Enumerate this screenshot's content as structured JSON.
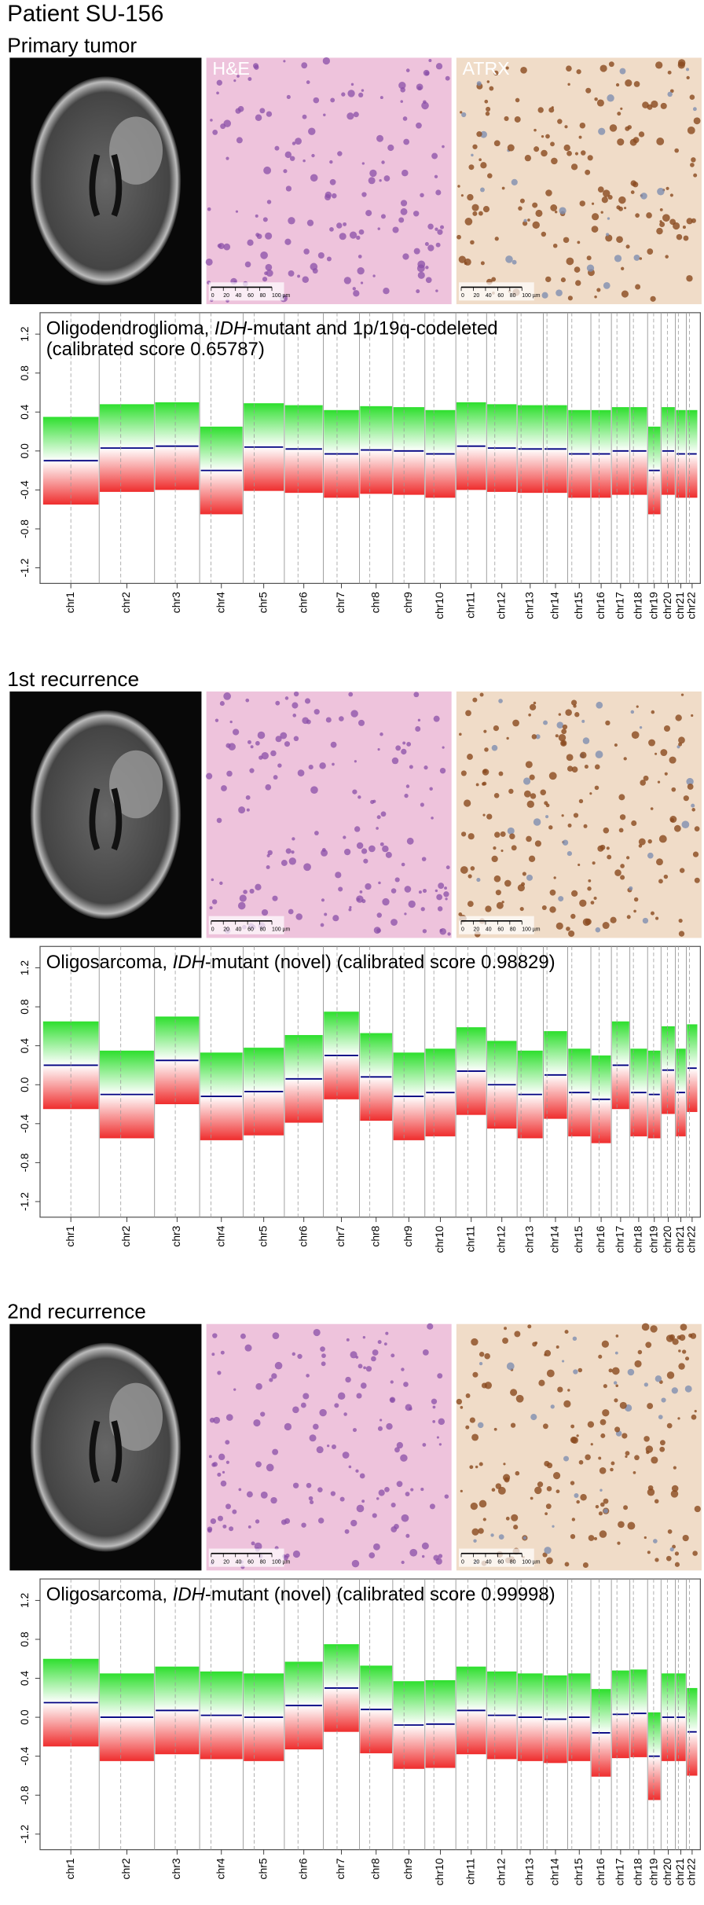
{
  "header": {
    "title": "Patient SU-156"
  },
  "scale_labels": [
    "0",
    "20",
    "40",
    "60",
    "80",
    "100 µm"
  ],
  "sections": [
    {
      "heading": "Primary tumor",
      "image_labels": [
        "H&E",
        "ATRX"
      ]
    },
    {
      "heading": "1st recurrence"
    },
    {
      "heading": "2nd recurrence"
    }
  ],
  "chart_data": [
    {
      "type": "segments",
      "title": [
        {
          "text": "Oligodendroglioma, ",
          "italic": false
        },
        {
          "text": "IDH",
          "italic": true
        },
        {
          "text": "-mutant and 1p/19q-codeleted",
          "italic": false
        }
      ],
      "subtitle": "(calibrated score 0.65787)",
      "categories": [
        "chr1",
        "chr2",
        "chr3",
        "chr4",
        "chr5",
        "chr6",
        "chr7",
        "chr8",
        "chr9",
        "chr10",
        "chr11",
        "chr12",
        "chr13",
        "chr14",
        "chr15",
        "chr16",
        "chr17",
        "chr18",
        "chr19",
        "chr20",
        "chr21",
        "chr22"
      ],
      "values": [
        -0.1,
        0.03,
        0.05,
        -0.2,
        0.04,
        0.02,
        -0.03,
        0.01,
        0,
        -0.03,
        0.05,
        0.03,
        0.02,
        0.02,
        -0.03,
        -0.03,
        0,
        0,
        -0.2,
        0,
        -0.03,
        -0.03
      ],
      "color": "#000080",
      "ylim": [
        -1.36,
        1.42
      ],
      "yticks": [
        1.2,
        0.8,
        0.4,
        {
          "value": 0,
          "label": "0.0"
        },
        -0.4,
        -0.8,
        -1.2
      ]
    },
    {
      "type": "segments",
      "title": [
        {
          "text": "Oligosarcoma, ",
          "italic": false
        },
        {
          "text": "IDH",
          "italic": true
        },
        {
          "text": "-mutant (novel) (calibrated score 0.98829)",
          "italic": false
        }
      ],
      "categories": [
        "chr1",
        "chr2",
        "chr3",
        "chr4",
        "chr5",
        "chr6",
        "chr7",
        "chr8",
        "chr9",
        "chr10",
        "chr11",
        "chr12",
        "chr13",
        "chr14",
        "chr15",
        "chr16",
        "chr17",
        "chr18",
        "chr19",
        "chr20",
        "chr21",
        "chr22"
      ],
      "values": [
        0.2,
        -0.1,
        0.25,
        -0.12,
        -0.07,
        0.06,
        0.3,
        0.08,
        -0.12,
        -0.08,
        0.14,
        0,
        -0.1,
        0.1,
        -0.08,
        -0.15,
        0.2,
        -0.08,
        -0.1,
        0.15,
        -0.08,
        0.17
      ],
      "color": "#000080",
      "ylim": [
        -1.36,
        1.42
      ],
      "yticks": [
        1.2,
        0.8,
        0.4,
        {
          "value": 0,
          "label": "0.0"
        },
        -0.4,
        -0.8,
        -1.2
      ]
    },
    {
      "type": "segments",
      "title": [
        {
          "text": "Oligosarcoma, ",
          "italic": false
        },
        {
          "text": "IDH",
          "italic": true
        },
        {
          "text": "-mutant (novel) (calibrated score 0.99998)",
          "italic": false
        }
      ],
      "categories": [
        "chr1",
        "chr2",
        "chr3",
        "chr4",
        "chr5",
        "chr6",
        "chr7",
        "chr8",
        "chr9",
        "chr10",
        "chr11",
        "chr12",
        "chr13",
        "chr14",
        "chr15",
        "chr16",
        "chr17",
        "chr18",
        "chr19",
        "chr20",
        "chr21",
        "chr22"
      ],
      "values": [
        0.15,
        0,
        0.07,
        0.02,
        0,
        0.12,
        0.3,
        0.08,
        -0.08,
        -0.07,
        0.07,
        0.02,
        0,
        -0.02,
        0,
        -0.16,
        0.03,
        0.04,
        -0.4,
        0,
        0,
        -0.15
      ],
      "color": "#000080",
      "ylim": [
        -1.36,
        1.42
      ],
      "yticks": [
        1.2,
        0.8,
        0.4,
        {
          "value": 0,
          "label": "0.0"
        },
        -0.4,
        -0.8,
        -1.2
      ]
    }
  ]
}
